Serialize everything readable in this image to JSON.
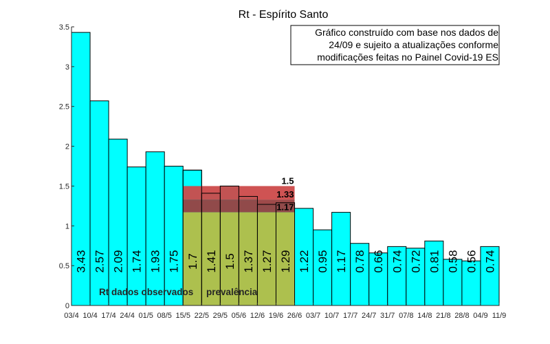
{
  "chart_data": {
    "type": "bar",
    "title": "Rt - Espírito Santo",
    "xlabel": "",
    "ylabel": "",
    "ylim": [
      0,
      3.5
    ],
    "yticks": [
      0,
      0.5,
      1,
      1.5,
      2,
      2.5,
      3,
      3.5
    ],
    "ytick_labels": [
      "0",
      "0.5",
      "1",
      "1.5",
      "2",
      "2.5",
      "3",
      "3.5"
    ],
    "x_tick_labels": [
      "03/4",
      "10/4",
      "17/4",
      "24/4",
      "01/5",
      "08/5",
      "15/5",
      "22/5",
      "29/5",
      "05/6",
      "12/6",
      "19/6",
      "26/6",
      "03/7",
      "10/7",
      "17/7",
      "24/7",
      "31/7",
      "07/8",
      "14/8",
      "21/8",
      "28/8",
      "04/9",
      "11/9"
    ],
    "categories": [
      "03/4-10/4",
      "10/4-17/4",
      "17/4-24/4",
      "24/4-01/5",
      "01/5-08/5",
      "08/5-15/5",
      "15/5-22/5",
      "22/5-29/5",
      "29/5-05/6",
      "05/6-12/6",
      "12/6-19/6",
      "19/6-26/6",
      "26/6-03/7",
      "03/7-10/7",
      "10/7-17/7",
      "17/7-24/7",
      "24/7-31/7",
      "31/7-07/8",
      "07/8-14/8",
      "14/8-21/8",
      "21/8-28/8",
      "28/8-04/9",
      "04/9-11/9"
    ],
    "values": [
      3.43,
      2.57,
      2.09,
      1.74,
      1.93,
      1.75,
      1.7,
      1.41,
      1.5,
      1.37,
      1.27,
      1.29,
      1.22,
      0.95,
      1.17,
      0.78,
      0.66,
      0.74,
      0.72,
      0.81,
      0.58,
      0.56,
      0.74
    ],
    "value_labels": [
      "3.43",
      "2.57",
      "2.09",
      "1.74",
      "1.93",
      "1.75",
      "1.7",
      "1.41",
      "1.5",
      "1.37",
      "1.27",
      "1.29",
      "1.22",
      "0.95",
      "1.17",
      "0.78",
      "0.66",
      "0.74",
      "0.72",
      "0.81",
      "0.58",
      "0.56",
      "0.74"
    ],
    "bands": [
      {
        "label": "1.5",
        "from": 1.33,
        "to": 1.5,
        "color": "#cc4a4a"
      },
      {
        "label": "1.33",
        "from": 1.17,
        "to": 1.33,
        "color": "#994040"
      },
      {
        "label": "1.17",
        "from": 0,
        "to": 1.17,
        "color": "#b6bd45"
      }
    ],
    "band_x_range": [
      "15/5",
      "26/6"
    ],
    "annotations": [
      "Rt dados observados",
      "prevalência"
    ],
    "note": [
      "Gráfico construído com base nos dados de",
      "24/09 e sujeito a atualizações conforme",
      "modificações feitas no Painel Covid-19 ES"
    ],
    "grid": false,
    "legend": "none",
    "colors": {
      "bar": "#00ffff",
      "edge": "#000000",
      "band_top": "#cc4a4a",
      "band_mid": "#994040",
      "band_base": "#b6bd45"
    }
  }
}
